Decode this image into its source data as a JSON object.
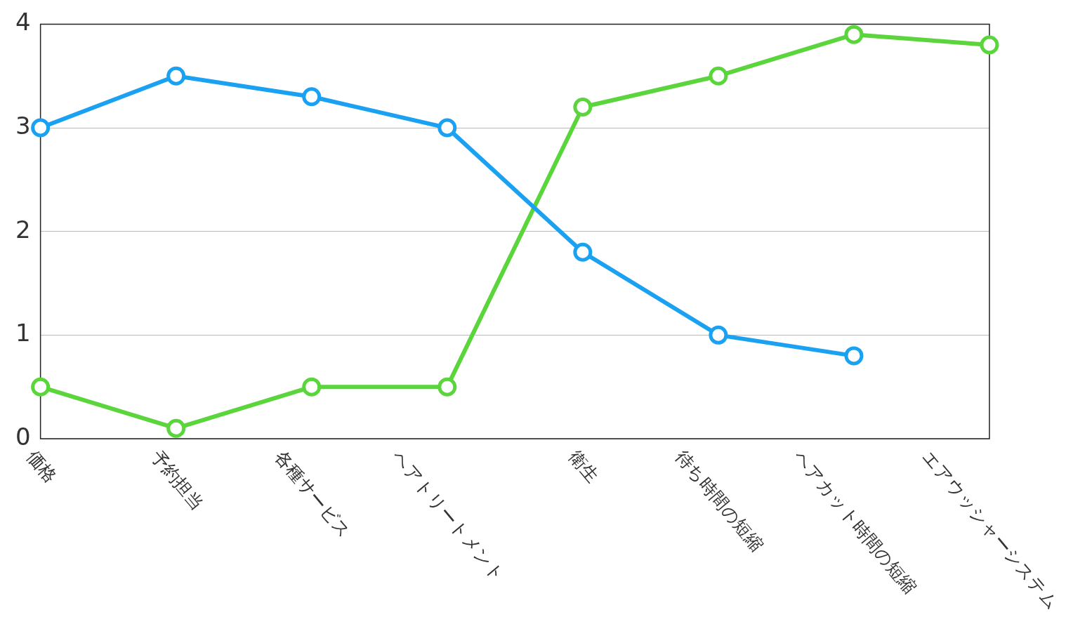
{
  "chart_data": {
    "type": "line",
    "categories": [
      "価格",
      "予約担当",
      "各種サービス",
      "ヘアトリートメント",
      "衛生",
      "待ち時間の短縮",
      "ヘアカット時間の短縮",
      "エアウッシャーシステム"
    ],
    "series": [
      {
        "color": "#1ba1f2",
        "values": [
          3.0,
          3.5,
          3.3,
          3.0,
          1.8,
          1.0,
          0.8,
          null
        ]
      },
      {
        "color": "#5ad53c",
        "values": [
          0.5,
          0.1,
          0.5,
          0.5,
          3.2,
          3.5,
          3.9,
          3.8
        ]
      }
    ],
    "ylim": [
      0,
      4
    ],
    "yticks": [
      0,
      1,
      2,
      3,
      4
    ],
    "grid": "y",
    "legend": false,
    "marker": "circle",
    "line_style": "solid"
  }
}
